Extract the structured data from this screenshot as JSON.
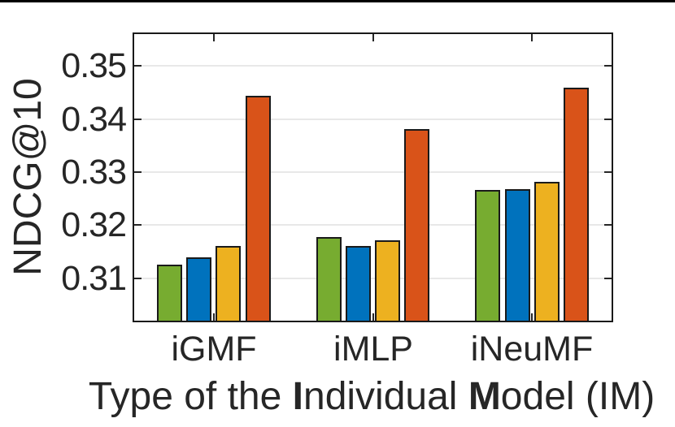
{
  "chart_data": {
    "type": "bar",
    "title": "",
    "ylabel": "NDCG@10",
    "xlabel_plain": "Type of the Individual Model (IM)",
    "xlabel_segments": [
      {
        "text": "Type of the ",
        "bold": false
      },
      {
        "text": "I",
        "bold": true
      },
      {
        "text": "ndividual ",
        "bold": false
      },
      {
        "text": "M",
        "bold": true
      },
      {
        "text": "odel (IM)",
        "bold": false
      }
    ],
    "categories": [
      "iGMF",
      "iMLP",
      "iNeuMF"
    ],
    "series": [
      {
        "name": "series-green",
        "color": "#77AC30",
        "values": [
          0.3125,
          0.3177,
          0.3266
        ]
      },
      {
        "name": "series-blue",
        "color": "#0072BD",
        "values": [
          0.3139,
          0.316,
          0.3268
        ]
      },
      {
        "name": "series-yellow",
        "color": "#EDB120",
        "values": [
          0.3161,
          0.3172,
          0.3281
        ]
      },
      {
        "name": "series-orange",
        "color": "#D95319",
        "values": [
          0.3444,
          0.3381,
          0.3459
        ]
      }
    ],
    "yticks": [
      "0.31",
      "0.32",
      "0.33",
      "0.34",
      "0.35"
    ],
    "ylim": [
      0.302,
      0.356
    ],
    "grid": "horizontal",
    "legend": "none",
    "colors": {
      "axis": "#262626",
      "bar_edge": "#1a1a1a",
      "gridline": "#e8e8e8",
      "text": "#262626"
    }
  }
}
